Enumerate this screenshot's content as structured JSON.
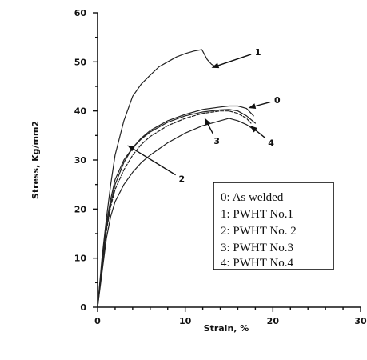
{
  "chart_data": {
    "type": "line",
    "xlabel": "Strain, %",
    "ylabel": "Stress, Kg/mm2",
    "xlim": [
      0,
      30
    ],
    "ylim": [
      0,
      60
    ],
    "x_ticks": [
      "0",
      "10",
      "20",
      "30"
    ],
    "y_ticks": [
      "0",
      "10",
      "20",
      "30",
      "40",
      "50",
      "60"
    ],
    "grid": false,
    "legend_position": "bottom-right",
    "legend": [
      "0: As welded",
      "1: PWHT No.1",
      "2: PWHT No. 2",
      "3: PWHT No.3",
      "4: PWHT No.4"
    ],
    "series": [
      {
        "name": "1",
        "dash": "",
        "points": [
          [
            0,
            0
          ],
          [
            0.5,
            10
          ],
          [
            1,
            18
          ],
          [
            1.5,
            25
          ],
          [
            2,
            31
          ],
          [
            3,
            38
          ],
          [
            4,
            43
          ],
          [
            5,
            45.5
          ],
          [
            6,
            47.3
          ],
          [
            7,
            49
          ],
          [
            8,
            50
          ],
          [
            9,
            51
          ],
          [
            10,
            51.7
          ],
          [
            11,
            52.2
          ],
          [
            11.9,
            52.5
          ],
          [
            12.5,
            50.5
          ],
          [
            13,
            49.5
          ],
          [
            13.5,
            49
          ]
        ]
      },
      {
        "name": "0",
        "dash": "",
        "points": [
          [
            0,
            0
          ],
          [
            0.5,
            8
          ],
          [
            1,
            16
          ],
          [
            1.5,
            21
          ],
          [
            2,
            25
          ],
          [
            3,
            29.5
          ],
          [
            4,
            32.5
          ],
          [
            5,
            34.5
          ],
          [
            6,
            36
          ],
          [
            8,
            38
          ],
          [
            10,
            39.3
          ],
          [
            12,
            40.3
          ],
          [
            14,
            40.8
          ],
          [
            15,
            41
          ],
          [
            16,
            41
          ],
          [
            17,
            40.5
          ],
          [
            17.8,
            39
          ]
        ]
      },
      {
        "name": "2",
        "dash": "",
        "points": [
          [
            0,
            0
          ],
          [
            0.5,
            9
          ],
          [
            1,
            17
          ],
          [
            1.5,
            22
          ],
          [
            2,
            26
          ],
          [
            3,
            30
          ],
          [
            4,
            32.5
          ],
          [
            5,
            34.3
          ],
          [
            6,
            35.7
          ],
          [
            8,
            37.7
          ],
          [
            10,
            39
          ],
          [
            12,
            39.8
          ],
          [
            14,
            40.2
          ],
          [
            15,
            40.3
          ],
          [
            16,
            40
          ],
          [
            17,
            39
          ],
          [
            18,
            37.5
          ]
        ]
      },
      {
        "name": "3",
        "dash": "4 2",
        "points": [
          [
            0,
            0
          ],
          [
            0.5,
            8
          ],
          [
            1,
            15.5
          ],
          [
            1.5,
            20.5
          ],
          [
            2,
            24
          ],
          [
            3,
            28
          ],
          [
            4,
            31
          ],
          [
            5,
            33.2
          ],
          [
            6,
            34.8
          ],
          [
            8,
            37
          ],
          [
            10,
            38.5
          ],
          [
            12,
            39.5
          ],
          [
            14,
            40
          ],
          [
            15,
            40
          ],
          [
            16,
            39.5
          ],
          [
            17,
            38.5
          ],
          [
            17.5,
            37.5
          ]
        ]
      },
      {
        "name": "4",
        "dash": "",
        "points": [
          [
            0,
            0
          ],
          [
            0.5,
            7
          ],
          [
            1,
            14
          ],
          [
            1.5,
            18.5
          ],
          [
            2,
            21.5
          ],
          [
            3,
            25
          ],
          [
            4,
            27.5
          ],
          [
            5,
            29.5
          ],
          [
            6,
            31
          ],
          [
            8,
            33.5
          ],
          [
            10,
            35.5
          ],
          [
            12,
            37
          ],
          [
            14,
            38
          ],
          [
            15,
            38.5
          ],
          [
            16,
            38
          ],
          [
            17,
            37.2
          ],
          [
            18,
            36
          ]
        ]
      }
    ],
    "annotations": [
      {
        "label": "1",
        "arrow_tip": [
          13,
          48.8
        ],
        "text_at": [
          18.3,
          52
        ]
      },
      {
        "label": "0",
        "arrow_tip": [
          17.2,
          40.6
        ],
        "text_at": [
          20.5,
          42.2
        ]
      },
      {
        "label": "3",
        "arrow_tip": [
          12.2,
          38.6
        ],
        "text_at": [
          13.6,
          33.9
        ]
      },
      {
        "label": "4",
        "arrow_tip": [
          17.4,
          37
        ],
        "text_at": [
          19.8,
          33.5
        ]
      },
      {
        "label": "2",
        "arrow_tip": [
          3.4,
          33
        ],
        "text_at": [
          9.6,
          26.2
        ]
      }
    ]
  }
}
